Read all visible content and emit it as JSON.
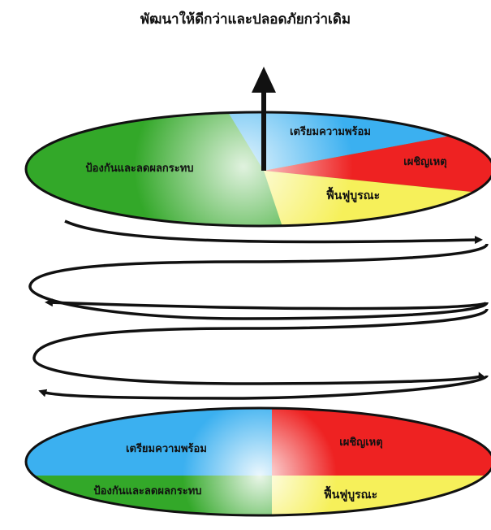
{
  "title": "พัฒนาให้ดีกว่าและปลอดภัยกว่าเดิม",
  "colors": {
    "green": "#33a829",
    "blue": "#3bb0f0",
    "red": "#ee2222",
    "yellow": "#f6f05a",
    "arrow": "#111111"
  },
  "top_cycle": {
    "preparedness": "เตรียมความพร้อม",
    "response": "เผชิญเหตุ",
    "recovery": "ฟื้นฟูบูรณะ",
    "prevention": "ป้องกันและลดผลกระทบ"
  },
  "bottom_cycle": {
    "preparedness": "เตรียมความพร้อม",
    "response": "เผชิญเหตุ",
    "recovery": "ฟื้นฟูบูรณะ",
    "prevention": "ป้องกันและลดผลกระทบ"
  }
}
